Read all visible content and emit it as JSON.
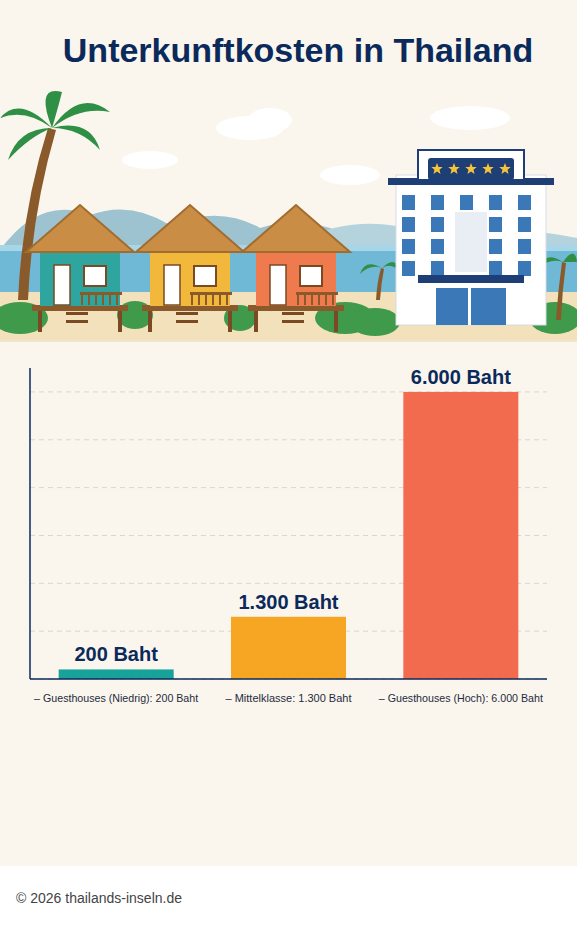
{
  "chart_data": {
    "type": "bar",
    "title": "Unterkunftkosten in Thailand",
    "categories": [
      "– Guesthouses (Niedrig): 200 Baht",
      "– Mittelklasse: 1.300 Baht",
      "– Guesthouses (Hoch): 6.000 Baht"
    ],
    "values": [
      200,
      1300,
      6000
    ],
    "value_labels": [
      "200 Baht",
      "1.300 Baht",
      "6.000 Baht"
    ],
    "colors": [
      "#17a39a",
      "#f6a623",
      "#f26b4f"
    ],
    "ylim": [
      0,
      6500
    ],
    "yticks": [
      0,
      1000,
      2000,
      3000,
      4000,
      5000,
      6000
    ],
    "grid": true,
    "data_labels": true,
    "tick_labels": false
  },
  "footer": {
    "text": "© 2026 thailands-inseln.de"
  }
}
